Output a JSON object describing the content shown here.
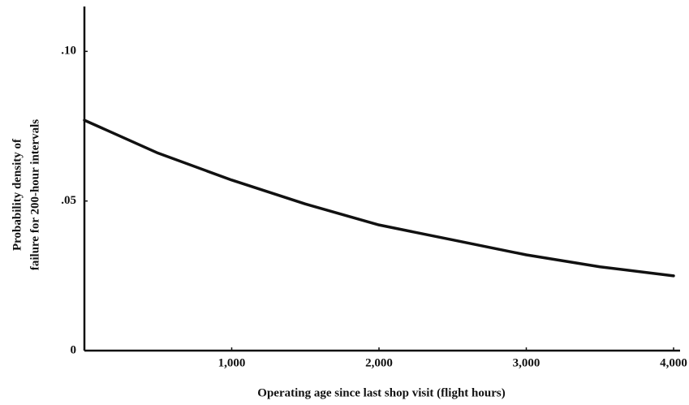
{
  "chart_data": {
    "type": "line",
    "xlabel": "Operating age since last shop visit (flight hours)",
    "ylabel": [
      "Probability density of",
      "failure for 200-hour intervals"
    ],
    "x": [
      0,
      500,
      1000,
      1500,
      2000,
      2500,
      3000,
      3500,
      4000
    ],
    "values": [
      0.077,
      0.066,
      0.057,
      0.049,
      0.042,
      0.037,
      0.032,
      0.028,
      0.025
    ],
    "color": "#111111",
    "xlim": [
      0,
      4000
    ],
    "ylim": [
      0,
      0.115
    ],
    "xticks": [
      {
        "value": 1000,
        "label": "1,000"
      },
      {
        "value": 2000,
        "label": "2,000"
      },
      {
        "value": 3000,
        "label": "3,000"
      },
      {
        "value": 4000,
        "label": "4,000"
      }
    ],
    "yticks": [
      0,
      {
        "value": 0.05,
        "label": ".05"
      },
      {
        "value": 0.1,
        "label": ".10"
      }
    ],
    "grid": false
  }
}
